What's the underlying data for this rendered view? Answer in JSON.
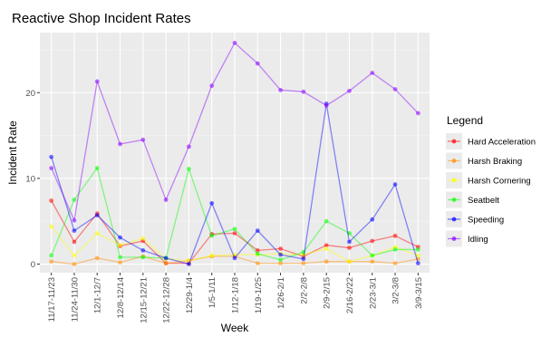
{
  "chart_data": {
    "type": "line",
    "title": "Reactive Shop Incident Rates",
    "xlabel": "Week",
    "ylabel": "Incident Rate",
    "categories": [
      "11/17-11/23",
      "11/24-11/30",
      "12/1-12/7",
      "12/8-12/14",
      "12/15-12/21",
      "12/22-12/28",
      "12/29-1/4",
      "1/5-1/11",
      "1/12-1/18",
      "1/19-1/25",
      "1/26-2/1",
      "2/2-2/8",
      "2/9-2/15",
      "2/16-2/22",
      "2/23-3/1",
      "3/2-3/8",
      "3/9-3/15"
    ],
    "ylim": [
      -1,
      27
    ],
    "yticks": [
      0,
      10,
      20
    ],
    "grid": true,
    "legend": {
      "title": "Legend",
      "position": "right"
    },
    "series": [
      {
        "name": "Hard Acceleration",
        "color": "#ff0000",
        "values": [
          7.4,
          2.6,
          5.9,
          2.1,
          2.7,
          0.1,
          0.1,
          3.5,
          3.6,
          1.6,
          1.8,
          0.9,
          2.2,
          1.9,
          2.7,
          3.3,
          2.0
        ]
      },
      {
        "name": "Harsh Braking",
        "color": "#ff8c00",
        "values": [
          0.3,
          0.0,
          0.7,
          0.2,
          0.9,
          0.1,
          0.4,
          0.9,
          0.9,
          0.1,
          0.1,
          0.1,
          0.3,
          0.3,
          0.3,
          0.1,
          0.6
        ]
      },
      {
        "name": "Harsh Cornering",
        "color": "#ffff00",
        "values": [
          4.4,
          1.0,
          3.6,
          2.2,
          3.0,
          0.6,
          0.4,
          1.0,
          1.1,
          1.1,
          1.2,
          1.1,
          1.8,
          0.3,
          1.0,
          2.0,
          1.0
        ]
      },
      {
        "name": "Seatbelt",
        "color": "#00ff00",
        "values": [
          1.0,
          7.5,
          11.2,
          0.8,
          0.8,
          0.7,
          11.1,
          3.3,
          4.1,
          1.2,
          0.5,
          1.4,
          5.0,
          3.6,
          1.0,
          1.7,
          1.7
        ]
      },
      {
        "name": "Speeding",
        "color": "#0000ff",
        "values": [
          12.5,
          3.9,
          5.7,
          3.1,
          1.6,
          0.7,
          0.0,
          7.1,
          0.7,
          3.9,
          1.1,
          0.6,
          18.7,
          2.6,
          5.2,
          9.3,
          0.1
        ]
      },
      {
        "name": "Idling",
        "color": "#8a00ff",
        "values": [
          11.2,
          5.1,
          21.3,
          14.0,
          14.5,
          7.5,
          13.7,
          20.8,
          25.8,
          23.4,
          20.3,
          20.1,
          18.5,
          20.2,
          22.3,
          20.4,
          17.6
        ]
      }
    ]
  }
}
